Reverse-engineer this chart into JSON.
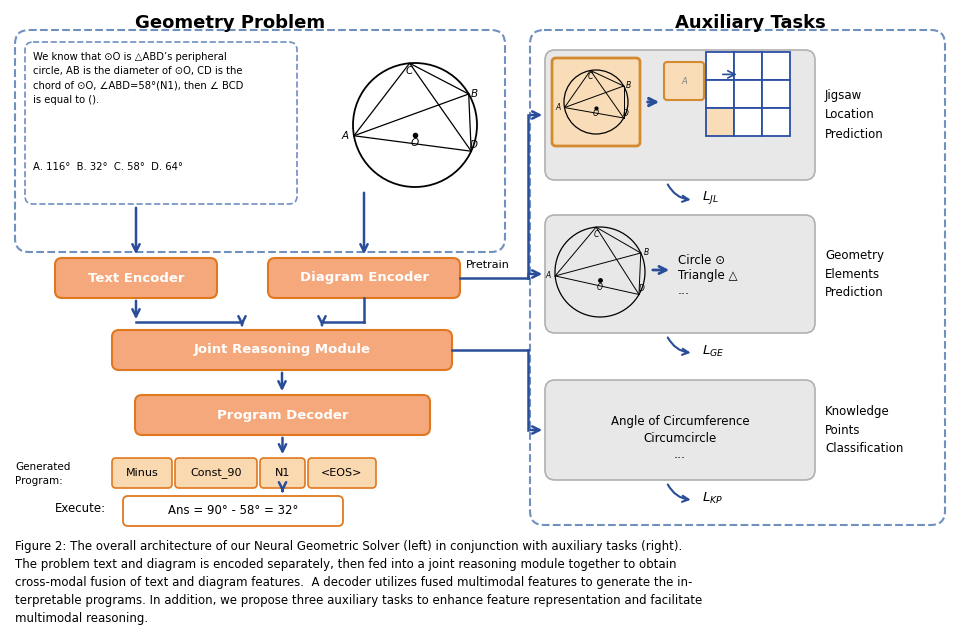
{
  "title_left": "Geometry Problem",
  "title_right": "Auxiliary Tasks",
  "fig_caption": "Figure 2: The overall architecture of our Neural Geometric Solver (left) in conjunction with auxiliary tasks (right).\nThe problem text and diagram is encoded separately, then fed into a joint reasoning module together to obtain\ncross-modal fusion of text and diagram features.  A decoder utilizes fused multimodal features to generate the in-\nterpretable programs. In addition, we propose three auxiliary tasks to enhance feature representation and facilitate\nmultimodal reasoning.",
  "problem_text": "We know that ⊙O is △ABD’s peripheral\ncircle, AB is the diameter of ⊙O, CD is the\nchord of ⊙O, ∠ABD=58°(N1), then ∠ BCD\nis equal to ().",
  "answer_text": "A. 116°  B. 32°  C. 58°  D. 64°",
  "orange_fill": "#F4A87C",
  "orange_edge": "#E07820",
  "arrow_color": "#2a4d9a",
  "dashed_color": "#7090c0",
  "gray_fill": "#e8e8e8",
  "gray_edge": "#b0b0b0",
  "program_tokens": [
    "Minus",
    "Const_90",
    "N1",
    "<EOS>"
  ],
  "execute_text": "Ans = 90° - 58° = 32°",
  "jl_label": "$L_{JL}$",
  "ge_label": "$L_{GE}$",
  "kp_label": "$L_{KP}$",
  "jl_title": "Jigsaw\nLocation\nPrediction",
  "ge_title": "Geometry\nElements\nPrediction",
  "kp_title": "Knowledge\nPoints\nClassification",
  "ge_text": "Circle ⊙\nTriangle △\n...",
  "kp_text": "Angle of Circumference\nCircumcircle\n...",
  "pretrain_label": "Pretrain"
}
